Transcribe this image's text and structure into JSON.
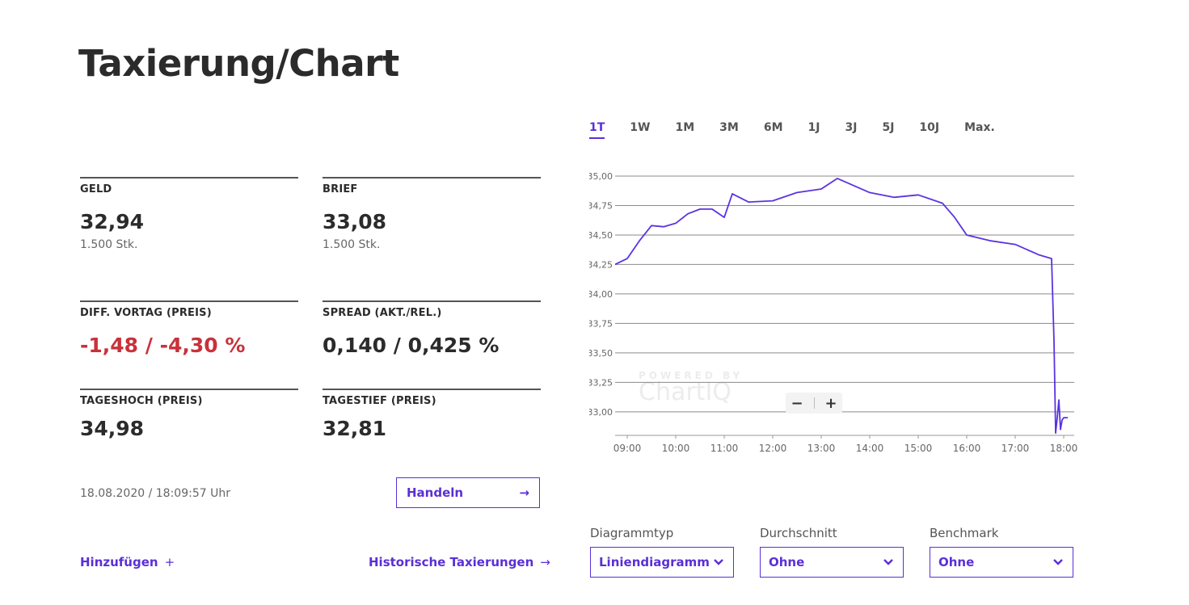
{
  "title": "Taxierung/Chart",
  "stats": {
    "geld": {
      "label": "GELD",
      "value": "32,94",
      "sub": "1.500 Stk."
    },
    "brief": {
      "label": "BRIEF",
      "value": "33,08",
      "sub": "1.500 Stk."
    },
    "diff": {
      "label": "DIFF. VORTAG (PREIS)",
      "value": "-1,48 / -4,30 %"
    },
    "spread": {
      "label": "SPREAD (AKT./REL.)",
      "value": "0,140 / 0,425 %"
    },
    "tageshoch": {
      "label": "TAGESHOCH (PREIS)",
      "value": "34,98"
    },
    "tagestief": {
      "label": "TAGESTIEF (PREIS)",
      "value": "32,81"
    }
  },
  "timestamp": "18.08.2020 / 18:09:57 Uhr",
  "trade_button": {
    "label": "Handeln",
    "icon": "arrow-right-icon"
  },
  "links": {
    "add": {
      "label": "Hinzufügen",
      "icon": "plus-icon"
    },
    "history": {
      "label": "Historische Taxierungen",
      "icon": "arrow-right-icon"
    }
  },
  "tabs": [
    "1T",
    "1W",
    "1M",
    "3M",
    "6M",
    "1J",
    "3J",
    "5J",
    "10J",
    "Max."
  ],
  "active_tab": "1T",
  "colors": {
    "accent": "#5a2fd6",
    "negative": "#c8323a",
    "line": "#5b33e0"
  },
  "zoom": {
    "minus": "−",
    "plus": "+"
  },
  "watermark": {
    "line1": "POWERED BY",
    "line2": "ChartIQ"
  },
  "controls": {
    "diagrammtyp": {
      "label": "Diagrammtyp",
      "value": "Liniendiagramm"
    },
    "durchschnitt": {
      "label": "Durchschnitt",
      "value": "Ohne"
    },
    "benchmark": {
      "label": "Benchmark",
      "value": "Ohne"
    }
  },
  "chart_data": {
    "type": "line",
    "xlabel": "",
    "ylabel": "",
    "x_ticks": [
      "09:00",
      "10:00",
      "11:00",
      "12:00",
      "13:00",
      "14:00",
      "15:00",
      "16:00",
      "17:00",
      "18:00"
    ],
    "y_ticks": [
      "35,00",
      "34,75",
      "34,50",
      "34,25",
      "34,00",
      "33,75",
      "33,50",
      "33,25",
      "33,00"
    ],
    "ylim": [
      32.8,
      35.0
    ],
    "grid": true,
    "series": [
      {
        "x": [
          "08:45",
          "09:00",
          "09:15",
          "09:30",
          "09:45",
          "10:00",
          "10:15",
          "10:30",
          "10:45",
          "11:00",
          "11:10",
          "11:30",
          "12:00",
          "12:30",
          "13:00",
          "13:20",
          "13:30",
          "14:00",
          "14:30",
          "15:00",
          "15:30",
          "15:45",
          "16:00",
          "16:30",
          "17:00",
          "17:30",
          "17:45",
          "17:48",
          "17:50",
          "17:52",
          "17:54",
          "17:56",
          "17:58",
          "18:00",
          "18:05"
        ],
        "values": [
          34.25,
          34.3,
          34.45,
          34.58,
          34.57,
          34.6,
          34.68,
          34.72,
          34.72,
          34.65,
          34.85,
          34.78,
          34.79,
          34.86,
          34.89,
          34.98,
          34.95,
          34.86,
          34.82,
          34.84,
          34.77,
          34.65,
          34.5,
          34.45,
          34.42,
          34.33,
          34.3,
          33.6,
          32.82,
          32.95,
          33.1,
          32.85,
          32.93,
          32.95,
          32.95
        ]
      }
    ]
  }
}
